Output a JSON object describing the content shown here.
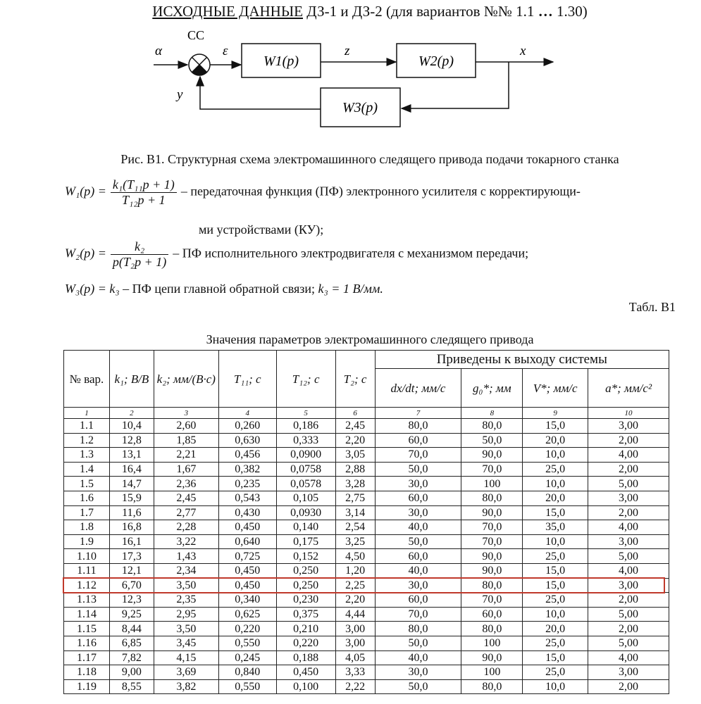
{
  "title": {
    "underlined": "ИСХОДНЫЕ ДАННЫЕ",
    "rest1": " ДЗ-1 и ДЗ-2 (для вариантов №№ 1.1 ",
    "ellipsis": "…",
    "rest2": " 1.30)"
  },
  "diagram": {
    "sum_label": "CC",
    "input": "α",
    "error": "ε",
    "mid": "z",
    "output": "x",
    "feedback": "y",
    "w1": "W1(p)",
    "w2": "W2(p)",
    "w3": "W3(p)"
  },
  "caption": "Рис. В1. Структурная схема электромашинного следящего привода подачи токарного станка",
  "formulas": {
    "w1_lhs": "W₁(p) =",
    "w1_num": "k₁(T₁₁p + 1)",
    "w1_den": "T₁₂p + 1",
    "w1_desc": "– передаточная функция (ПФ) электронного усилителя с корректирующи-",
    "w1_desc2": "ми устройствами (КУ);",
    "w2_lhs": "W₂(p) =",
    "w2_num": "k₂",
    "w2_den": "p(T₂p + 1)",
    "w2_desc": "– ПФ исполнительного электродвигателя с механизмом передачи;",
    "w3_lhs": "W₃(p) = k₃",
    "w3_desc": " – ПФ цепи главной обратной связи; ",
    "w3_k": "k₃ = 1 В/мм."
  },
  "table_label": "Табл. В1",
  "table_title": "Значения параметров электромашинного следящего привода",
  "table": {
    "group_header": "Приведены к выходу системы",
    "headers": [
      "№ вар.",
      "k₁; В/В",
      "k₂; мм/(В·с)",
      "T₁₁; с",
      "T₁₂; с",
      "T₂; с",
      "dx/dt; мм/с",
      "g₀*; мм",
      "V*; мм/с",
      "a*; мм/с²"
    ],
    "col_numbers": [
      "1",
      "2",
      "3",
      "4",
      "5",
      "6",
      "7",
      "8",
      "9",
      "10"
    ],
    "highlighted_row": "1.12",
    "highlight_color": "#c0392b",
    "rows": [
      [
        "1.1",
        "10,4",
        "2,60",
        "0,260",
        "0,186",
        "2,45",
        "80,0",
        "80,0",
        "15,0",
        "3,00"
      ],
      [
        "1.2",
        "12,8",
        "1,85",
        "0,630",
        "0,333",
        "2,20",
        "60,0",
        "50,0",
        "20,0",
        "2,00"
      ],
      [
        "1.3",
        "13,1",
        "2,21",
        "0,456",
        "0,0900",
        "3,05",
        "70,0",
        "90,0",
        "10,0",
        "4,00"
      ],
      [
        "1.4",
        "16,4",
        "1,67",
        "0,382",
        "0,0758",
        "2,88",
        "50,0",
        "70,0",
        "25,0",
        "2,00"
      ],
      [
        "1.5",
        "14,7",
        "2,36",
        "0,235",
        "0,0578",
        "3,28",
        "30,0",
        "100",
        "10,0",
        "5,00"
      ],
      [
        "1.6",
        "15,9",
        "2,45",
        "0,543",
        "0,105",
        "2,75",
        "60,0",
        "80,0",
        "20,0",
        "3,00"
      ],
      [
        "1.7",
        "11,6",
        "2,77",
        "0,430",
        "0,0930",
        "3,14",
        "30,0",
        "90,0",
        "15,0",
        "2,00"
      ],
      [
        "1.8",
        "16,8",
        "2,28",
        "0,450",
        "0,140",
        "2,54",
        "40,0",
        "70,0",
        "35,0",
        "4,00"
      ],
      [
        "1.9",
        "16,1",
        "3,22",
        "0,640",
        "0,175",
        "3,25",
        "50,0",
        "70,0",
        "10,0",
        "3,00"
      ],
      [
        "1.10",
        "17,3",
        "1,43",
        "0,725",
        "0,152",
        "4,50",
        "60,0",
        "90,0",
        "25,0",
        "5,00"
      ],
      [
        "1.11",
        "12,1",
        "2,34",
        "0,450",
        "0,250",
        "1,20",
        "40,0",
        "90,0",
        "15,0",
        "4,00"
      ],
      [
        "1.12",
        "6,70",
        "3,50",
        "0,450",
        "0,250",
        "2,25",
        "30,0",
        "80,0",
        "15,0",
        "3,00"
      ],
      [
        "1.13",
        "12,3",
        "2,35",
        "0,340",
        "0,230",
        "2,20",
        "60,0",
        "70,0",
        "25,0",
        "2,00"
      ],
      [
        "1.14",
        "9,25",
        "2,95",
        "0,625",
        "0,375",
        "4,44",
        "70,0",
        "60,0",
        "10,0",
        "5,00"
      ],
      [
        "1.15",
        "8,44",
        "3,50",
        "0,220",
        "0,210",
        "3,00",
        "80,0",
        "80,0",
        "20,0",
        "2,00"
      ],
      [
        "1.16",
        "6,85",
        "3,45",
        "0,550",
        "0,220",
        "3,00",
        "50,0",
        "100",
        "25,0",
        "5,00"
      ],
      [
        "1.17",
        "7,82",
        "4,15",
        "0,245",
        "0,188",
        "4,05",
        "40,0",
        "90,0",
        "15,0",
        "4,00"
      ],
      [
        "1.18",
        "9,00",
        "3,69",
        "0,840",
        "0,450",
        "3,33",
        "30,0",
        "100",
        "25,0",
        "3,00"
      ],
      [
        "1.19",
        "8,55",
        "3,82",
        "0,550",
        "0,100",
        "2,22",
        "50,0",
        "80,0",
        "10,0",
        "2,00"
      ]
    ]
  }
}
